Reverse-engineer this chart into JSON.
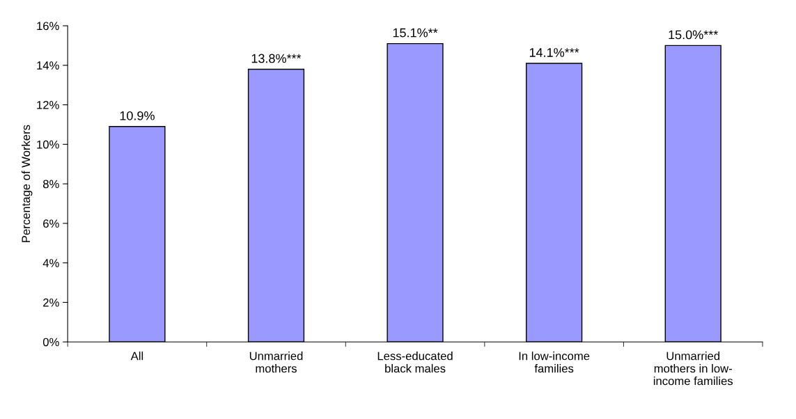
{
  "chart_data": {
    "type": "bar",
    "ylabel": "Percentage of Workers",
    "categories": [
      "All",
      "Unmarried\nmothers",
      "Less-educated\nblack males",
      "In low-income\nfamilies",
      "Unmarried\nmothers in low-\nincome families"
    ],
    "values": [
      10.9,
      13.8,
      15.1,
      14.1,
      15.0
    ],
    "value_labels": [
      "10.9%",
      "13.8%***",
      "15.1%**",
      "14.1%***",
      "15.0%***"
    ],
    "color": "#9999ff",
    "ylim": [
      0,
      16
    ],
    "yticks": [
      {
        "value": 0,
        "label": "0%"
      },
      {
        "value": 2,
        "label": "2%"
      },
      {
        "value": 4,
        "label": "4%"
      },
      {
        "value": 6,
        "label": "6%"
      },
      {
        "value": 8,
        "label": "8%"
      },
      {
        "value": 10,
        "label": "10%"
      },
      {
        "value": 12,
        "label": "12%"
      },
      {
        "value": 14,
        "label": "14%"
      },
      {
        "value": 16,
        "label": "16%"
      }
    ],
    "grid": false,
    "legend": false
  }
}
